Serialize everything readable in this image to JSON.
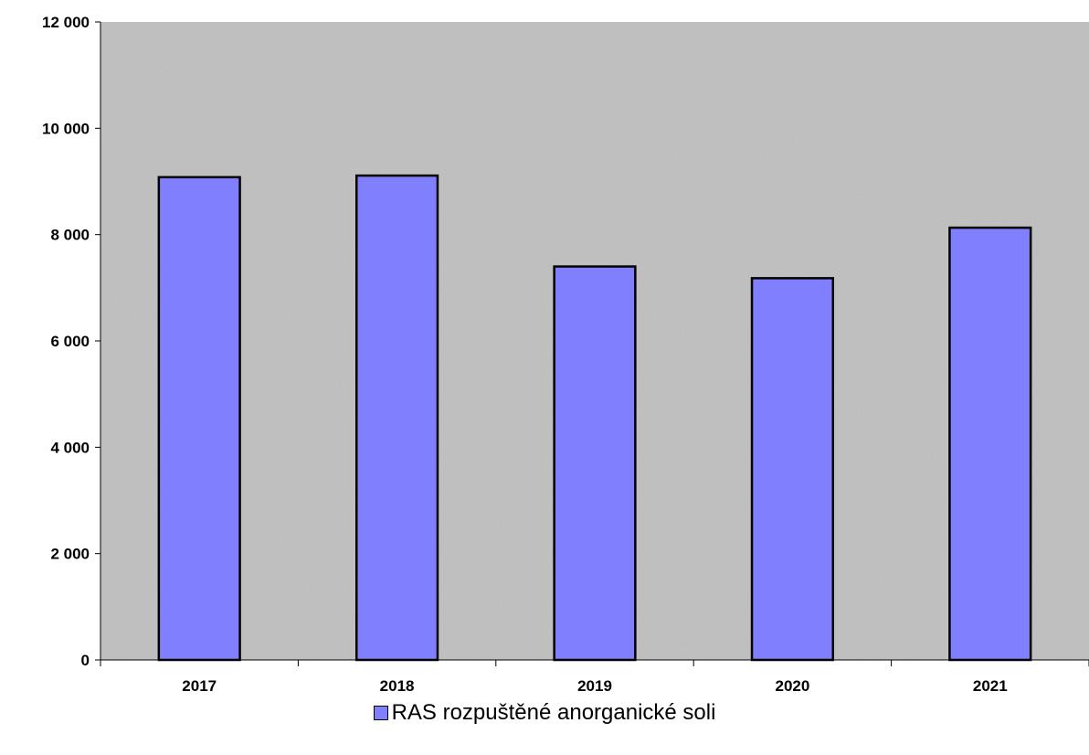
{
  "chart_data": {
    "type": "bar",
    "categories": [
      "2017",
      "2018",
      "2019",
      "2020",
      "2021"
    ],
    "series": [
      {
        "name": "RAS rozpuštěné anorganické soli",
        "values": [
          9080,
          9110,
          7400,
          7180,
          8130
        ]
      }
    ],
    "ylim": [
      0,
      12000
    ],
    "yticks": [
      0,
      2000,
      4000,
      6000,
      8000,
      10000,
      12000
    ],
    "ytick_labels": [
      "0",
      "2 000",
      "4 000",
      "6 000",
      "8 000",
      "10 000",
      "12 000"
    ],
    "title": "",
    "xlabel": "",
    "ylabel": "",
    "grid": false,
    "legend_position": "bottom",
    "colors": {
      "bar": "#8080ff",
      "plot_background": "#c0c0c0",
      "outline": "#000000"
    }
  }
}
